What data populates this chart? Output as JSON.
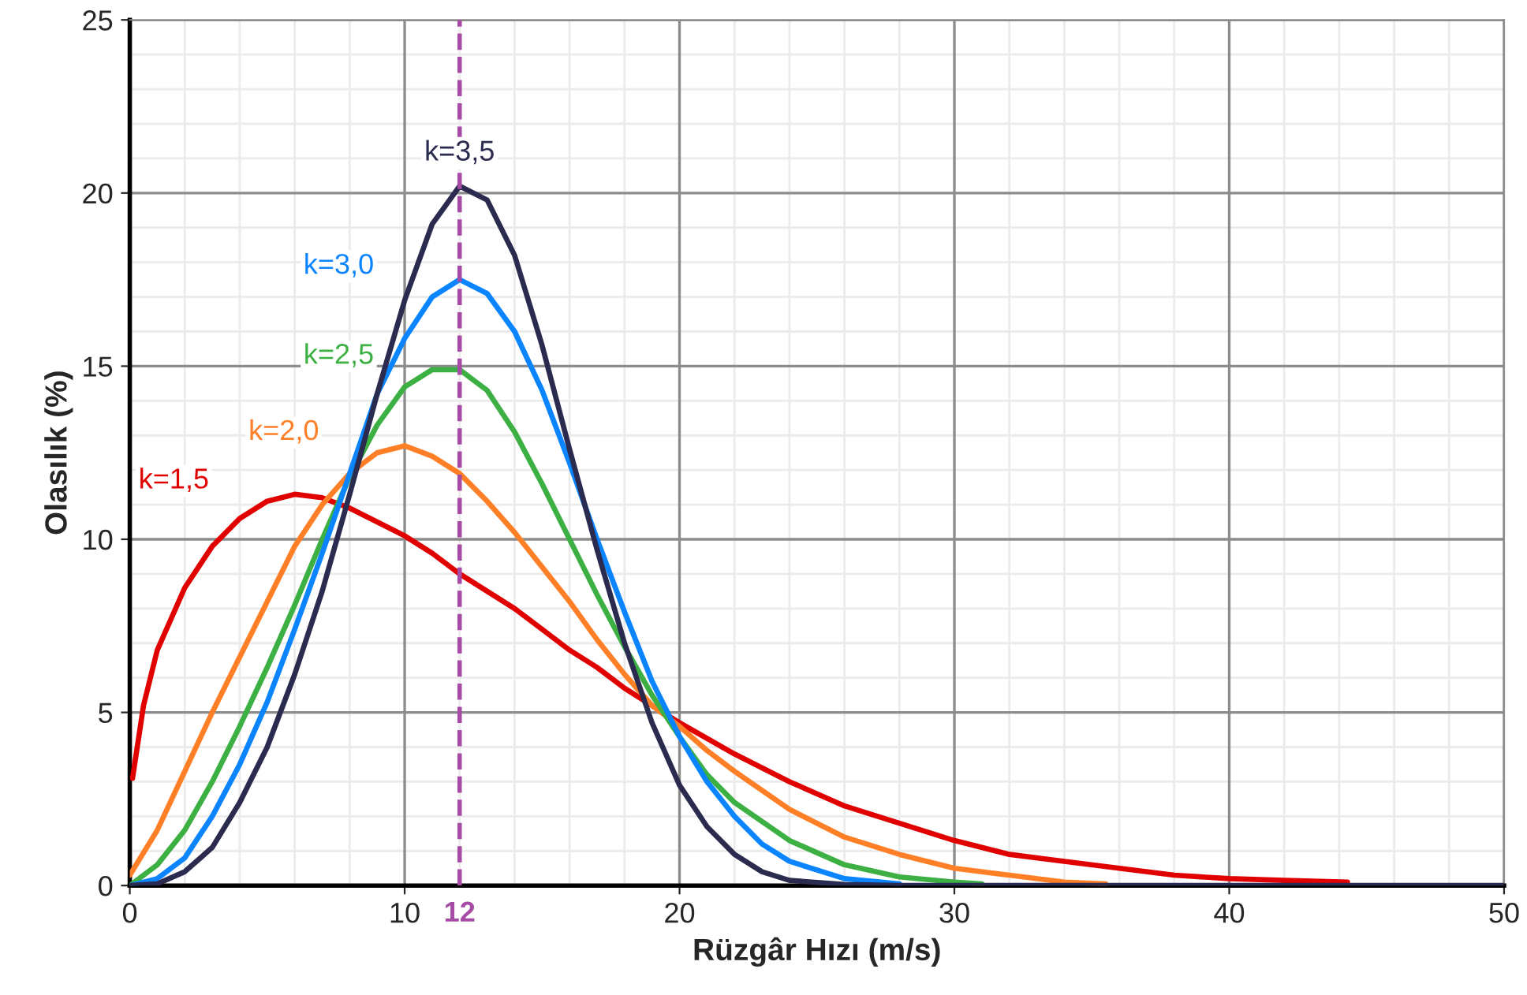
{
  "chart_data": {
    "type": "line",
    "xlabel": "Rüzgâr Hızı (m/s)",
    "ylabel": "Olasılık (%)",
    "xlim": [
      0,
      50
    ],
    "ylim": [
      0,
      25
    ],
    "xticks": [
      0,
      10,
      20,
      30,
      40,
      50
    ],
    "yticks": [
      0,
      5,
      10,
      15,
      20,
      25
    ],
    "grid": true,
    "legend": false,
    "marker": "none",
    "line_style": "solid",
    "ref_lines": [
      {
        "axis": "x",
        "value": 12,
        "label": "12",
        "color": "#a64ca6",
        "line_style": "dashed"
      }
    ],
    "series": [
      {
        "name": "k=1,5",
        "color": "#e00000",
        "x": [
          0.1,
          0.5,
          1,
          2,
          3,
          4,
          5,
          6,
          7,
          8,
          9,
          10,
          11,
          12,
          13,
          14,
          15,
          16,
          17,
          18,
          19,
          20,
          22,
          24,
          26,
          28,
          30,
          32,
          34,
          36,
          38,
          40,
          42,
          44.3
        ],
        "values": [
          3.1,
          5.2,
          6.8,
          8.6,
          9.8,
          10.6,
          11.1,
          11.3,
          11.2,
          10.9,
          10.5,
          10.1,
          9.6,
          9.0,
          8.5,
          8.0,
          7.4,
          6.8,
          6.3,
          5.7,
          5.2,
          4.7,
          3.8,
          3.0,
          2.3,
          1.8,
          1.3,
          0.9,
          0.7,
          0.5,
          0.3,
          0.2,
          0.15,
          0.1
        ]
      },
      {
        "name": "k=2,0",
        "color": "#ff7f27",
        "x": [
          0,
          1,
          2,
          3,
          4,
          5,
          6,
          7,
          8,
          9,
          10,
          11,
          12,
          13,
          14,
          15,
          16,
          17,
          18,
          19,
          20,
          21,
          22,
          24,
          26,
          28,
          30,
          32,
          34,
          35.5
        ],
        "values": [
          0.3,
          1.6,
          3.3,
          5.0,
          6.6,
          8.2,
          9.8,
          11.0,
          11.9,
          12.5,
          12.7,
          12.4,
          11.9,
          11.1,
          10.2,
          9.2,
          8.2,
          7.1,
          6.1,
          5.2,
          4.6,
          3.9,
          3.3,
          2.2,
          1.4,
          0.9,
          0.5,
          0.3,
          0.1,
          0.05
        ]
      },
      {
        "name": "k=2,5",
        "color": "#3cb043",
        "x": [
          0,
          1,
          2,
          3,
          4,
          5,
          6,
          7,
          8,
          9,
          10,
          11,
          12,
          13,
          14,
          15,
          16,
          17,
          18,
          19,
          20,
          21,
          22,
          24,
          26,
          28,
          30,
          31
        ],
        "values": [
          0,
          0.6,
          1.6,
          3.0,
          4.6,
          6.3,
          8.1,
          10.0,
          11.8,
          13.3,
          14.4,
          14.9,
          14.9,
          14.3,
          13.1,
          11.6,
          10.0,
          8.4,
          6.9,
          5.5,
          4.3,
          3.2,
          2.4,
          1.3,
          0.6,
          0.25,
          0.1,
          0.05
        ]
      },
      {
        "name": "k=3,0",
        "color": "#0a84ff",
        "x": [
          0,
          1,
          2,
          3,
          4,
          5,
          6,
          7,
          8,
          9,
          10,
          11,
          12,
          13,
          14,
          15,
          16,
          17,
          18,
          19,
          20,
          21,
          22,
          23,
          24,
          26,
          28
        ],
        "values": [
          0,
          0.2,
          0.8,
          2.0,
          3.5,
          5.3,
          7.4,
          9.6,
          11.9,
          14.2,
          15.8,
          17.0,
          17.5,
          17.1,
          16.0,
          14.3,
          12.2,
          10.0,
          7.9,
          5.9,
          4.3,
          3.0,
          2.0,
          1.2,
          0.7,
          0.2,
          0.05
        ]
      },
      {
        "name": "k=3,5",
        "color": "#2b2b4f",
        "x": [
          0,
          1,
          2,
          3,
          4,
          5,
          6,
          7,
          8,
          9,
          10,
          11,
          12,
          13,
          14,
          15,
          16,
          17,
          18,
          19,
          20,
          21,
          22,
          23,
          24,
          26,
          28,
          50
        ],
        "values": [
          0,
          0.05,
          0.4,
          1.1,
          2.4,
          4.0,
          6.1,
          8.5,
          11.3,
          14.2,
          16.9,
          19.1,
          20.2,
          19.8,
          18.2,
          15.6,
          12.6,
          9.7,
          7.0,
          4.7,
          2.9,
          1.7,
          0.9,
          0.4,
          0.15,
          0.03,
          0,
          0
        ]
      }
    ]
  }
}
